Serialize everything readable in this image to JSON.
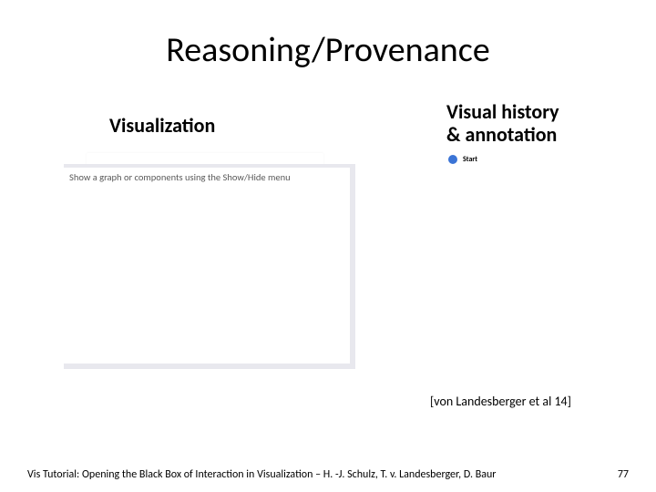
{
  "title": "Reasoning/Provenance",
  "leftHeading": "Visualization",
  "rightHeading": "Visual history\n& annotation",
  "vizPanel": {
    "hint": "Show a graph or components using the Show/Hide menu",
    "background_color": "#ffffff",
    "scrollbar_color": "#e8e8ee",
    "hint_color": "#5a5a5a",
    "hint_fontsize": 10.5
  },
  "historyPanel": {
    "start": {
      "label": "Start",
      "dot_color": "#3b74d6",
      "label_fontsize": 8
    }
  },
  "citation": "[von Landesberger et al 14]",
  "footer": "Vis Tutorial: Opening the Black Box of Interaction in Visualization – H. -J. Schulz, T. v. Landesberger, D. Baur",
  "pageNumber": "77",
  "typography": {
    "title_fontsize": 38,
    "heading_fontsize": 22,
    "citation_fontsize": 14,
    "footer_fontsize": 12
  },
  "colors": {
    "background": "#ffffff",
    "text": "#000000"
  }
}
